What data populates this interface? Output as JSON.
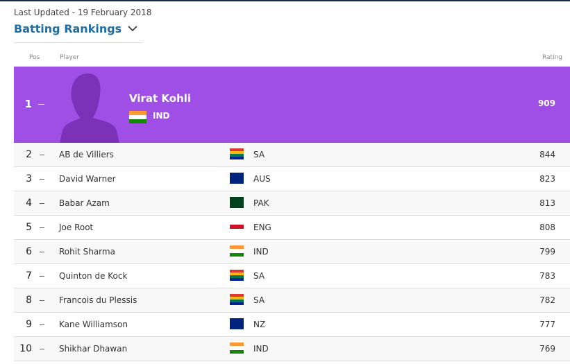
{
  "header": {
    "last_updated": "Last Updated - 19 February 2018",
    "title": "Batting Rankings"
  },
  "table": {
    "columns": [
      "Pos",
      "Player",
      "Rating"
    ],
    "rows": [
      {
        "pos": 1,
        "player": "Virat Kohli",
        "country": "IND",
        "rating": 909,
        "flag": [
          "#ff9933",
          "#ffffff",
          "#138808"
        ]
      },
      {
        "pos": 2,
        "player": "AB de Villiers",
        "country": "SA",
        "rating": 844,
        "flag": [
          "#de3831",
          "#ffb612",
          "#007a4d",
          "#002395"
        ]
      },
      {
        "pos": 3,
        "player": "David Warner",
        "country": "AUS",
        "rating": 823,
        "flag": [
          "#00247d",
          "#00247d"
        ]
      },
      {
        "pos": 4,
        "player": "Babar Azam",
        "country": "PAK",
        "rating": 813,
        "flag": [
          "#01411c",
          "#01411c"
        ]
      },
      {
        "pos": 5,
        "player": "Joe Root",
        "country": "ENG",
        "rating": 808,
        "flag": [
          "#ffffff",
          "#ce1124",
          "#ffffff"
        ]
      },
      {
        "pos": 6,
        "player": "Rohit Sharma",
        "country": "IND",
        "rating": 799,
        "flag": [
          "#ff9933",
          "#ffffff",
          "#138808"
        ]
      },
      {
        "pos": 7,
        "player": "Quinton de Kock",
        "country": "SA",
        "rating": 783,
        "flag": [
          "#de3831",
          "#ffb612",
          "#007a4d",
          "#002395"
        ]
      },
      {
        "pos": 8,
        "player": "Francois du Plessis",
        "country": "SA",
        "rating": 782,
        "flag": [
          "#de3831",
          "#ffb612",
          "#007a4d",
          "#002395"
        ]
      },
      {
        "pos": 9,
        "player": "Kane Williamson",
        "country": "NZ",
        "rating": 777,
        "flag": [
          "#00247d",
          "#00247d"
        ]
      },
      {
        "pos": 10,
        "player": "Shikhar Dhawan",
        "country": "IND",
        "rating": 769,
        "flag": [
          "#ff9933",
          "#ffffff",
          "#138808"
        ]
      }
    ]
  }
}
